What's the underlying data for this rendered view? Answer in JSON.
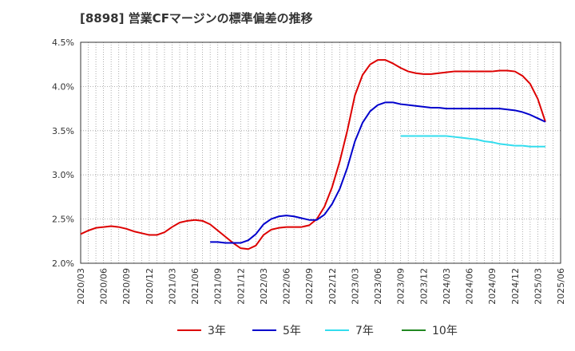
{
  "chart_data": {
    "type": "line",
    "title": "[8898]  営業CFマージンの標準偏差の推移",
    "xlabel": "",
    "ylabel": "",
    "x_tick_labels": [
      "2020/03",
      "2020/06",
      "2020/09",
      "2020/12",
      "2021/03",
      "2021/06",
      "2021/09",
      "2021/12",
      "2022/03",
      "2022/06",
      "2022/09",
      "2022/12",
      "2023/03",
      "2023/06",
      "2023/09",
      "2023/12",
      "2024/03",
      "2024/06",
      "2024/09",
      "2024/12",
      "2025/03",
      "2025/06"
    ],
    "y_tick_labels": [
      "2.0%",
      "2.5%",
      "3.0%",
      "3.5%",
      "4.0%",
      "4.5%"
    ],
    "ylim": [
      2.0,
      4.5
    ],
    "grid": true,
    "legend_position": "bottom",
    "series": [
      {
        "name": "3年",
        "color": "#dd0000",
        "points": [
          [
            "2020/03",
            2.33
          ],
          [
            "2020/04",
            2.37
          ],
          [
            "2020/05",
            2.4
          ],
          [
            "2020/06",
            2.41
          ],
          [
            "2020/07",
            2.42
          ],
          [
            "2020/08",
            2.41
          ],
          [
            "2020/09",
            2.39
          ],
          [
            "2020/10",
            2.36
          ],
          [
            "2020/11",
            2.34
          ],
          [
            "2020/12",
            2.32
          ],
          [
            "2021/01",
            2.32
          ],
          [
            "2021/02",
            2.35
          ],
          [
            "2021/03",
            2.41
          ],
          [
            "2021/04",
            2.46
          ],
          [
            "2021/05",
            2.48
          ],
          [
            "2021/06",
            2.49
          ],
          [
            "2021/07",
            2.48
          ],
          [
            "2021/08",
            2.44
          ],
          [
            "2021/09",
            2.37
          ],
          [
            "2021/10",
            2.3
          ],
          [
            "2021/11",
            2.23
          ],
          [
            "2021/12",
            2.17
          ],
          [
            "2022/01",
            2.16
          ],
          [
            "2022/02",
            2.2
          ],
          [
            "2022/03",
            2.32
          ],
          [
            "2022/04",
            2.38
          ],
          [
            "2022/05",
            2.4
          ],
          [
            "2022/06",
            2.41
          ],
          [
            "2022/07",
            2.41
          ],
          [
            "2022/08",
            2.41
          ],
          [
            "2022/09",
            2.43
          ],
          [
            "2022/10",
            2.5
          ],
          [
            "2022/11",
            2.64
          ],
          [
            "2022/12",
            2.86
          ],
          [
            "2023/01",
            3.15
          ],
          [
            "2023/02",
            3.5
          ],
          [
            "2023/03",
            3.9
          ],
          [
            "2023/04",
            4.13
          ],
          [
            "2023/05",
            4.25
          ],
          [
            "2023/06",
            4.3
          ],
          [
            "2023/07",
            4.3
          ],
          [
            "2023/08",
            4.26
          ],
          [
            "2023/09",
            4.21
          ],
          [
            "2023/10",
            4.17
          ],
          [
            "2023/11",
            4.15
          ],
          [
            "2023/12",
            4.14
          ],
          [
            "2024/01",
            4.14
          ],
          [
            "2024/02",
            4.15
          ],
          [
            "2024/03",
            4.16
          ],
          [
            "2024/04",
            4.17
          ],
          [
            "2024/05",
            4.17
          ],
          [
            "2024/06",
            4.17
          ],
          [
            "2024/07",
            4.17
          ],
          [
            "2024/08",
            4.17
          ],
          [
            "2024/09",
            4.17
          ],
          [
            "2024/10",
            4.18
          ],
          [
            "2024/11",
            4.18
          ],
          [
            "2024/12",
            4.17
          ],
          [
            "2025/01",
            4.12
          ],
          [
            "2025/02",
            4.03
          ],
          [
            "2025/03",
            3.86
          ],
          [
            "2025/04",
            3.6
          ]
        ]
      },
      {
        "name": "5年",
        "color": "#0000cc",
        "points": [
          [
            "2021/08",
            2.24
          ],
          [
            "2021/09",
            2.24
          ],
          [
            "2021/10",
            2.23
          ],
          [
            "2021/11",
            2.23
          ],
          [
            "2021/12",
            2.23
          ],
          [
            "2022/01",
            2.26
          ],
          [
            "2022/02",
            2.33
          ],
          [
            "2022/03",
            2.44
          ],
          [
            "2022/04",
            2.5
          ],
          [
            "2022/05",
            2.53
          ],
          [
            "2022/06",
            2.54
          ],
          [
            "2022/07",
            2.53
          ],
          [
            "2022/08",
            2.51
          ],
          [
            "2022/09",
            2.49
          ],
          [
            "2022/10",
            2.49
          ],
          [
            "2022/11",
            2.55
          ],
          [
            "2022/12",
            2.67
          ],
          [
            "2023/01",
            2.84
          ],
          [
            "2023/02",
            3.08
          ],
          [
            "2023/03",
            3.38
          ],
          [
            "2023/04",
            3.59
          ],
          [
            "2023/05",
            3.72
          ],
          [
            "2023/06",
            3.79
          ],
          [
            "2023/07",
            3.82
          ],
          [
            "2023/08",
            3.82
          ],
          [
            "2023/09",
            3.8
          ],
          [
            "2023/10",
            3.79
          ],
          [
            "2023/11",
            3.78
          ],
          [
            "2023/12",
            3.77
          ],
          [
            "2024/01",
            3.76
          ],
          [
            "2024/02",
            3.76
          ],
          [
            "2024/03",
            3.75
          ],
          [
            "2024/04",
            3.75
          ],
          [
            "2024/05",
            3.75
          ],
          [
            "2024/06",
            3.75
          ],
          [
            "2024/07",
            3.75
          ],
          [
            "2024/08",
            3.75
          ],
          [
            "2024/09",
            3.75
          ],
          [
            "2024/10",
            3.75
          ],
          [
            "2024/11",
            3.74
          ],
          [
            "2024/12",
            3.73
          ],
          [
            "2025/01",
            3.71
          ],
          [
            "2025/02",
            3.68
          ],
          [
            "2025/03",
            3.64
          ],
          [
            "2025/04",
            3.6
          ]
        ]
      },
      {
        "name": "7年",
        "color": "#33ddee",
        "points": [
          [
            "2023/09",
            3.44
          ],
          [
            "2023/10",
            3.44
          ],
          [
            "2023/11",
            3.44
          ],
          [
            "2023/12",
            3.44
          ],
          [
            "2024/01",
            3.44
          ],
          [
            "2024/02",
            3.44
          ],
          [
            "2024/03",
            3.44
          ],
          [
            "2024/04",
            3.43
          ],
          [
            "2024/05",
            3.42
          ],
          [
            "2024/06",
            3.41
          ],
          [
            "2024/07",
            3.4
          ],
          [
            "2024/08",
            3.38
          ],
          [
            "2024/09",
            3.37
          ],
          [
            "2024/10",
            3.35
          ],
          [
            "2024/11",
            3.34
          ],
          [
            "2024/12",
            3.33
          ],
          [
            "2025/01",
            3.33
          ],
          [
            "2025/02",
            3.32
          ],
          [
            "2025/03",
            3.32
          ],
          [
            "2025/04",
            3.32
          ]
        ]
      },
      {
        "name": "10年",
        "color": "#228822",
        "points": []
      }
    ]
  }
}
